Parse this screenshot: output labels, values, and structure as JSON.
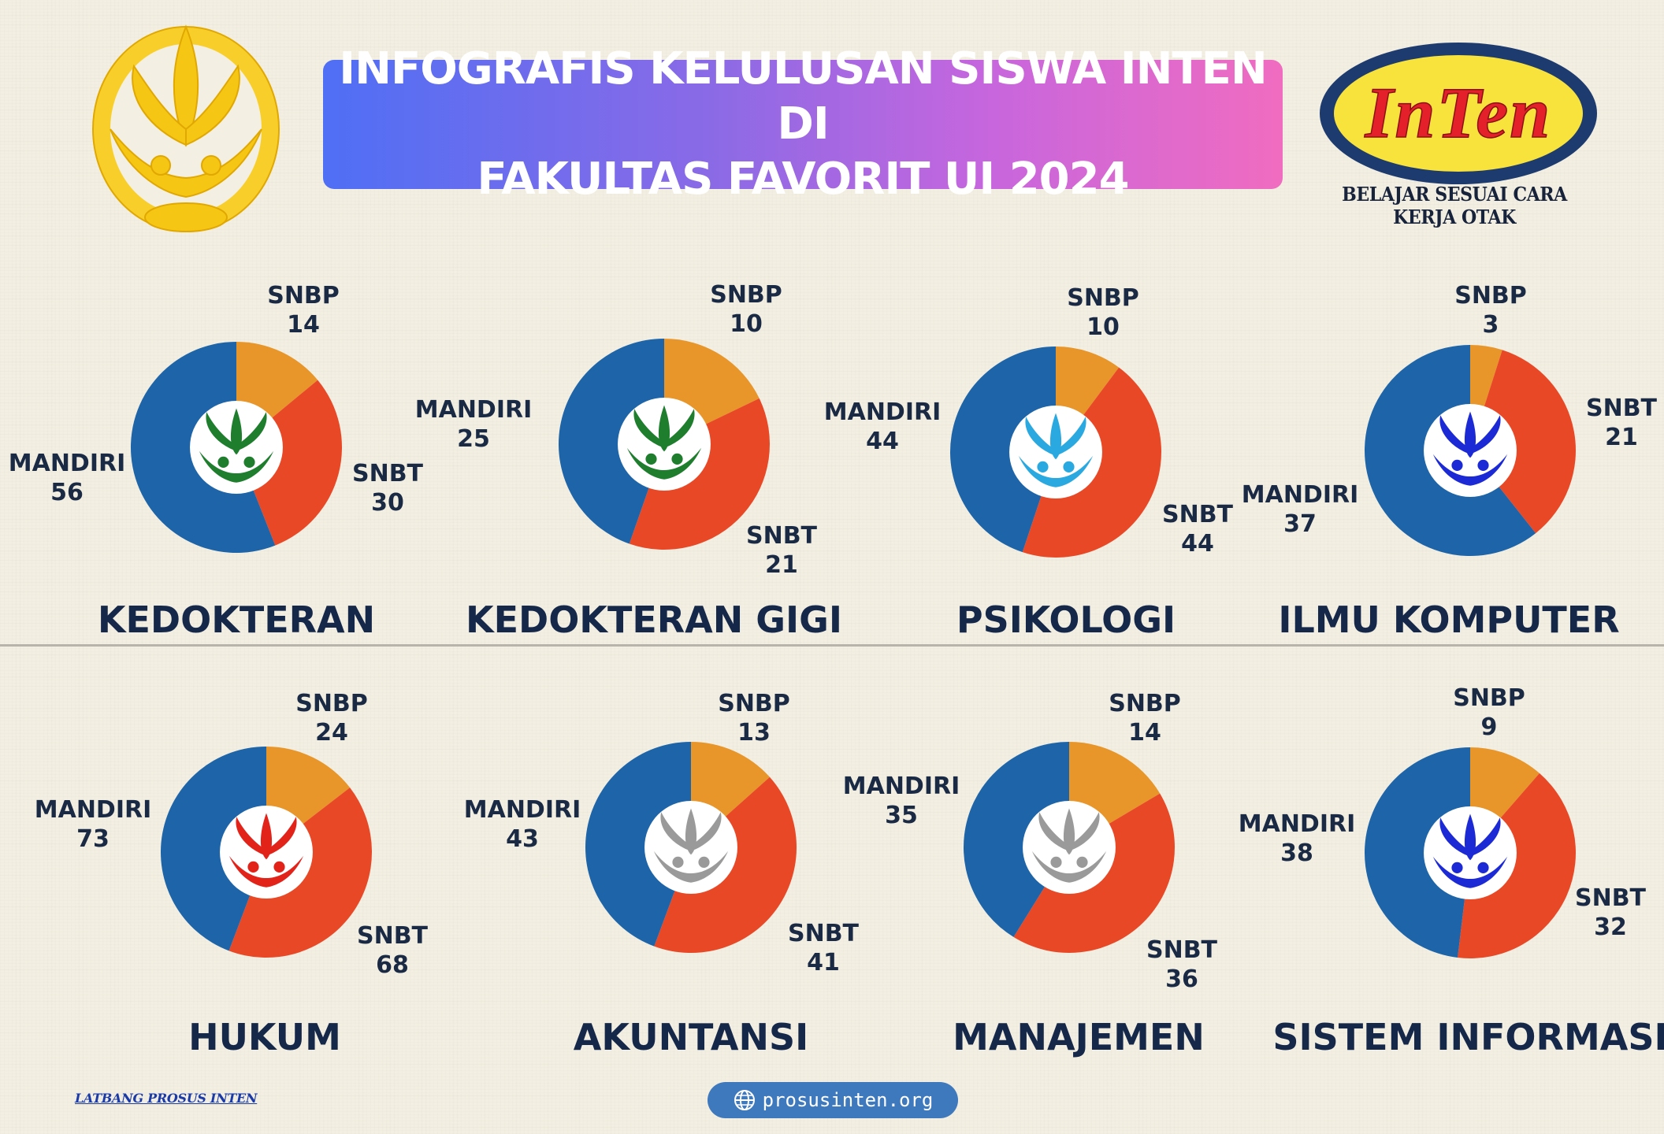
{
  "header": {
    "title_line1": "INFOGRAFIS KELULUSAN SISWA INTEN DI",
    "title_line2": "FAKULTAS FAVORIT UI 2024",
    "logo_text": "InTen",
    "tagline": "BELAJAR SESUAI CARA KERJA OTAK"
  },
  "footer": {
    "credit": "LATBANG PROSUS INTEN",
    "url": "prosusinten.org"
  },
  "colors": {
    "snbp": "#e8952a",
    "snbt": "#e94826",
    "mandiri": "#1d64a8",
    "title_gradient": [
      "#4f6ff5",
      "#f06cc0"
    ],
    "logo_yellow": "#f8e23c",
    "logo_navy": "#1d3b6e",
    "logo_red": "#e4202a"
  },
  "chart_data": [
    {
      "type": "pie",
      "title": "KEDOKTERAN",
      "categories": [
        "SNBP",
        "SNBT",
        "MANDIRI"
      ],
      "values": [
        14,
        30,
        56
      ],
      "emblem_color": "#1f7d2e"
    },
    {
      "type": "pie",
      "title": "KEDOKTERAN GIGI",
      "categories": [
        "SNBP",
        "SNBT",
        "MANDIRI"
      ],
      "values": [
        10,
        21,
        25
      ],
      "emblem_color": "#1f7d2e"
    },
    {
      "type": "pie",
      "title": "PSIKOLOGI",
      "categories": [
        "SNBP",
        "SNBT",
        "MANDIRI"
      ],
      "values": [
        10,
        44,
        44
      ],
      "emblem_color": "#2aa8e0"
    },
    {
      "type": "pie",
      "title": "ILMU KOMPUTER",
      "categories": [
        "SNBP",
        "SNBT",
        "MANDIRI"
      ],
      "values": [
        3,
        21,
        37
      ],
      "emblem_color": "#1c2ad6"
    },
    {
      "type": "pie",
      "title": "HUKUM",
      "categories": [
        "SNBP",
        "SNBT",
        "MANDIRI"
      ],
      "values": [
        24,
        68,
        73
      ],
      "emblem_color": "#e2231a"
    },
    {
      "type": "pie",
      "title": "AKUNTANSI",
      "categories": [
        "SNBP",
        "SNBT",
        "MANDIRI"
      ],
      "values": [
        13,
        41,
        43
      ],
      "emblem_color": "#9a9a9a"
    },
    {
      "type": "pie",
      "title": "MANAJEMEN",
      "categories": [
        "SNBP",
        "SNBT",
        "MANDIRI"
      ],
      "values": [
        14,
        36,
        35
      ],
      "emblem_color": "#9a9a9a"
    },
    {
      "type": "pie",
      "title": "SISTEM INFORMASI",
      "categories": [
        "SNBP",
        "SNBT",
        "MANDIRI"
      ],
      "values": [
        9,
        32,
        38
      ],
      "emblem_color": "#1c2ad6"
    }
  ]
}
